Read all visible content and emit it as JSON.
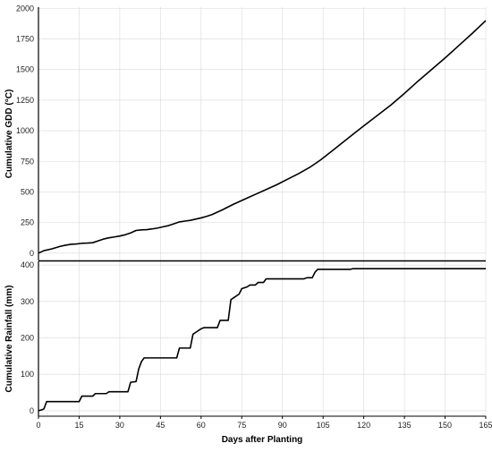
{
  "colors": {
    "background": "#ffffff",
    "grid": "#d9d9d9",
    "line": "#000000",
    "axis": "#000000"
  },
  "chart_data": [
    {
      "type": "line",
      "ylabel": "Cumulative GDD (°C)",
      "xlim": [
        0,
        165
      ],
      "ylim": [
        -60,
        2010
      ],
      "yticks": [
        0,
        250,
        500,
        750,
        1000,
        1250,
        1500,
        1750,
        2000
      ],
      "grid": true,
      "series": [
        {
          "x": [
            0,
            2,
            5,
            8,
            10,
            12,
            14,
            16,
            18,
            20,
            22,
            24,
            26,
            28,
            30,
            32,
            34,
            36,
            38,
            40,
            42,
            44,
            46,
            48,
            50,
            52,
            54,
            56,
            58,
            60,
            62,
            64,
            66,
            68,
            70,
            72,
            75,
            78,
            80,
            84,
            88,
            92,
            96,
            100,
            104,
            108,
            112,
            116,
            120,
            125,
            130,
            135,
            140,
            145,
            150,
            155,
            160,
            165
          ],
          "y": [
            0,
            20,
            35,
            55,
            65,
            72,
            75,
            80,
            82,
            85,
            100,
            115,
            125,
            132,
            140,
            150,
            165,
            185,
            190,
            192,
            198,
            205,
            215,
            225,
            240,
            255,
            262,
            268,
            278,
            288,
            300,
            315,
            335,
            355,
            378,
            400,
            430,
            460,
            480,
            520,
            560,
            605,
            650,
            700,
            760,
            830,
            900,
            970,
            1040,
            1125,
            1210,
            1305,
            1405,
            1500,
            1595,
            1695,
            1795,
            1900
          ]
        }
      ]
    },
    {
      "type": "line",
      "xlabel": "Days after Planting",
      "ylabel": "Cumulative Rainfall (mm)",
      "xlim": [
        0,
        165
      ],
      "ylim": [
        -15,
        410
      ],
      "xticks": [
        0,
        15,
        30,
        45,
        60,
        75,
        90,
        105,
        120,
        135,
        150,
        165
      ],
      "yticks": [
        0,
        100,
        200,
        300,
        400
      ],
      "grid": true,
      "series": [
        {
          "x": [
            0,
            1,
            2,
            3,
            15,
            16,
            20,
            21,
            25,
            26,
            33,
            34,
            36,
            37,
            38,
            39,
            51,
            52,
            56,
            57,
            58,
            60,
            61,
            66,
            67,
            70,
            71,
            72,
            74,
            75,
            77,
            78,
            80,
            81,
            83,
            84,
            98,
            99,
            101,
            102,
            103,
            104,
            115,
            116,
            165
          ],
          "y": [
            0,
            2,
            5,
            25,
            25,
            40,
            40,
            47,
            47,
            52,
            52,
            78,
            80,
            115,
            135,
            145,
            145,
            172,
            172,
            210,
            215,
            225,
            228,
            228,
            248,
            248,
            305,
            310,
            320,
            335,
            340,
            345,
            345,
            352,
            352,
            362,
            362,
            365,
            365,
            380,
            388,
            388,
            388,
            390,
            390
          ]
        }
      ]
    }
  ]
}
